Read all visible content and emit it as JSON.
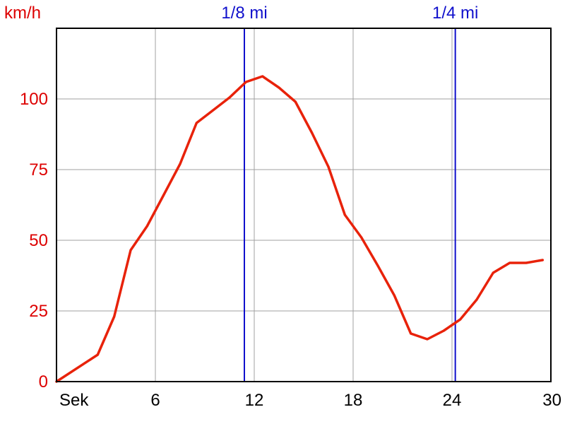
{
  "chart_data": {
    "type": "line",
    "ylabel": "km/h",
    "xlim": [
      0,
      30
    ],
    "ylim": [
      0,
      125
    ],
    "x_ticks": [
      {
        "value": 0,
        "label": "Sek"
      },
      {
        "value": 6,
        "label": "6"
      },
      {
        "value": 12,
        "label": "12"
      },
      {
        "value": 18,
        "label": "18"
      },
      {
        "value": 24,
        "label": "24"
      },
      {
        "value": 30,
        "label": "30"
      }
    ],
    "y_ticks": [
      {
        "value": 0,
        "label": "0"
      },
      {
        "value": 25,
        "label": "25"
      },
      {
        "value": 50,
        "label": "50"
      },
      {
        "value": 75,
        "label": "75"
      },
      {
        "value": 100,
        "label": "100"
      }
    ],
    "grid": true,
    "markers": [
      {
        "x": 11.4,
        "label": "1/8 mi"
      },
      {
        "x": 24.2,
        "label": "1/4 mi"
      }
    ],
    "series": [
      {
        "color": "#e8220a",
        "x": [
          0,
          2.5,
          3.5,
          4.5,
          5.5,
          6.5,
          7.5,
          8.5,
          9.5,
          10.5,
          11.5,
          12.5,
          13.5,
          14.5,
          15.5,
          16.5,
          17.5,
          18.5,
          19.5,
          20.5,
          21.5,
          22.5,
          23.5,
          24.5,
          25.5,
          26.5,
          27.5,
          28.5,
          29.5
        ],
        "y": [
          0,
          9.5,
          23,
          46.5,
          55,
          66,
          77,
          91.5,
          96,
          100.5,
          106,
          108,
          104,
          99,
          88,
          76,
          59,
          51,
          41,
          30.5,
          17,
          15,
          18,
          22,
          29,
          38.5,
          42,
          42,
          43
        ]
      }
    ]
  }
}
